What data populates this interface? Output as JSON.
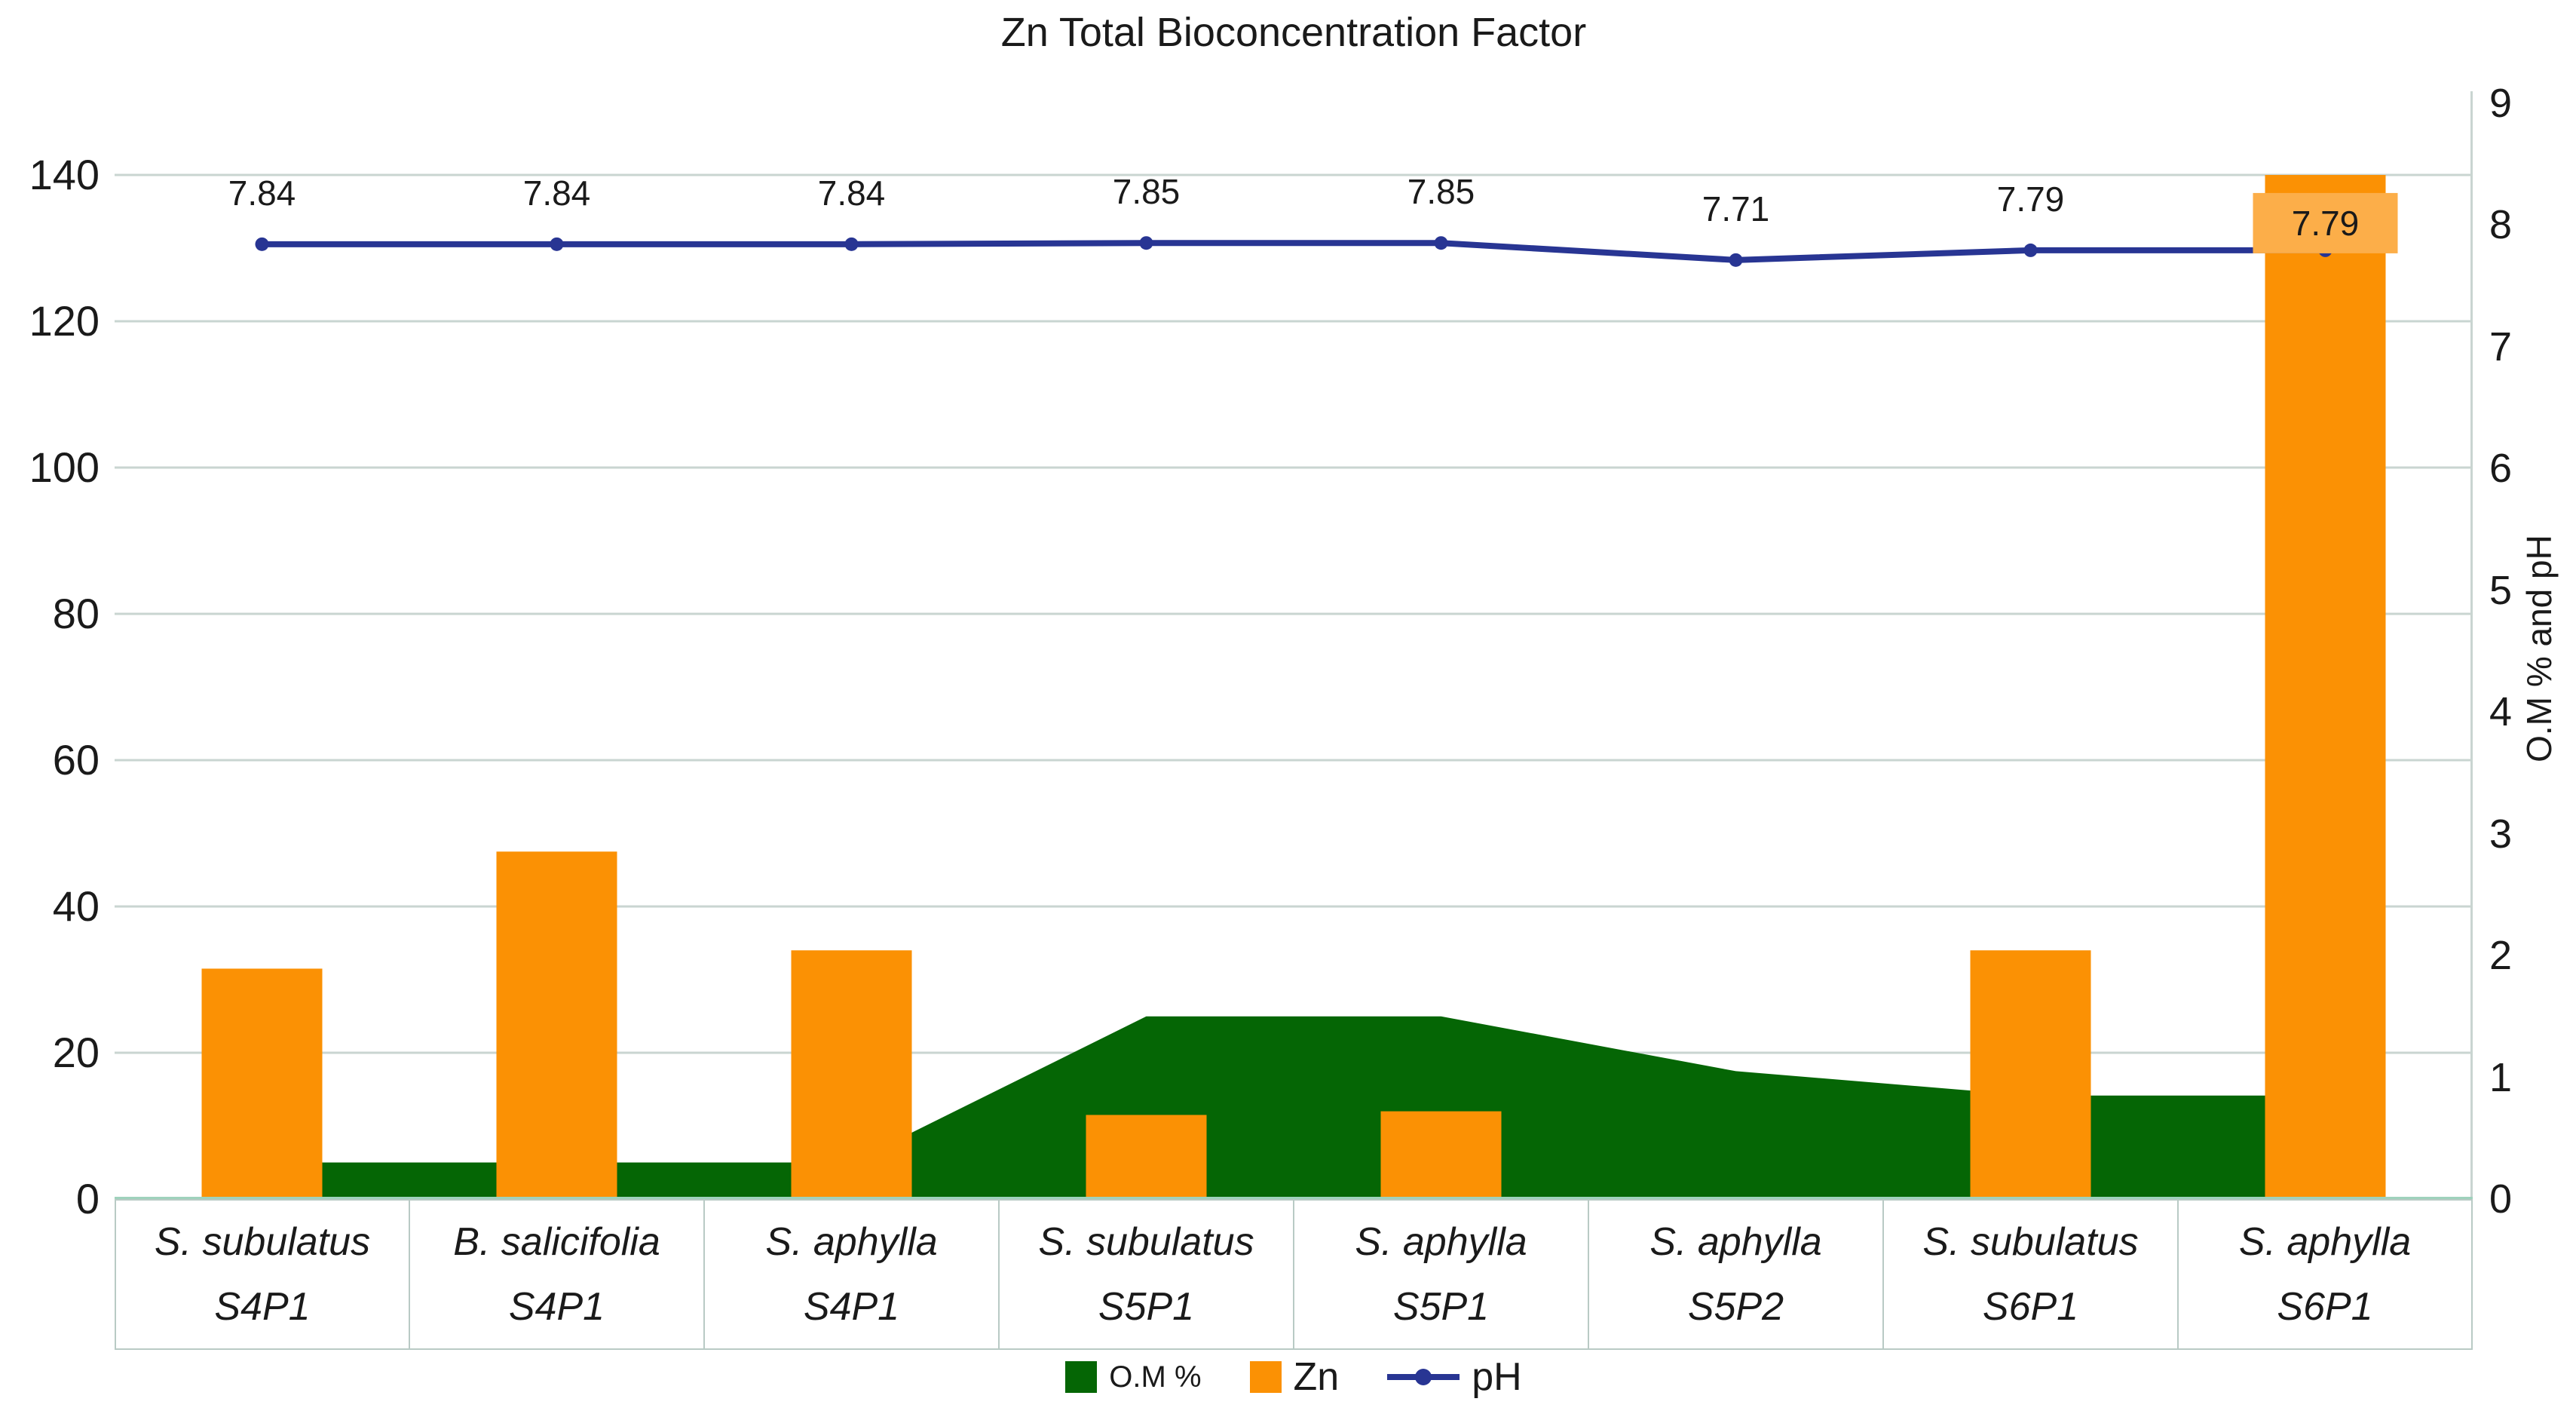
{
  "title": "Zn Total Bioconcentration Factor",
  "left_axis": {
    "ticks": [
      0,
      20,
      40,
      60,
      80,
      100,
      120,
      140
    ],
    "min": 0,
    "max": 140
  },
  "right_axis": {
    "ticks": [
      0,
      1,
      2,
      3,
      4,
      5,
      6,
      7,
      8,
      9
    ],
    "min": 0,
    "max": 9,
    "title": "O.M % and pH"
  },
  "legend": [
    {
      "label": "O.M %",
      "type": "area",
      "color": "#056605",
      "size": "small"
    },
    {
      "label": "Zn",
      "type": "bar",
      "color": "#fb9104",
      "size": "large"
    },
    {
      "label": "pH",
      "type": "line",
      "color": "#283593",
      "size": "large"
    }
  ],
  "colors": {
    "bar": "#fb9104",
    "area": "#056605",
    "line": "#283593",
    "gridline": "#c9d5d1",
    "baseline": "#9fd2bc",
    "cell_border": "#b9cac5",
    "last_label_box": "#fcae49",
    "text": "#1a1a1a"
  },
  "chart_data": {
    "type": "combo",
    "categories": [
      {
        "species": "S. subulatus",
        "code": "S4P1"
      },
      {
        "species": "B. salicifolia",
        "code": "S4P1"
      },
      {
        "species": "S. aphylla",
        "code": "S4P1"
      },
      {
        "species": "S. subulatus",
        "code": "S5P1"
      },
      {
        "species": "S. aphylla",
        "code": "S5P1"
      },
      {
        "species": "S. aphylla",
        "code": "S5P2"
      },
      {
        "species": "S. subulatus",
        "code": "S6P1"
      },
      {
        "species": "S. aphylla",
        "code": "S6P1"
      }
    ],
    "series": [
      {
        "name": "O.M %",
        "type": "area",
        "axis": "right",
        "values": [
          0.3,
          0.3,
          0.3,
          1.5,
          1.5,
          1.05,
          0.85,
          0.85
        ]
      },
      {
        "name": "Zn",
        "type": "bar",
        "axis": "left",
        "values": [
          31.5,
          47.5,
          34,
          11.5,
          12,
          0,
          34,
          140
        ]
      },
      {
        "name": "pH",
        "type": "line",
        "axis": "right",
        "values": [
          7.84,
          7.84,
          7.84,
          7.85,
          7.85,
          7.71,
          7.79,
          7.79
        ],
        "labels": [
          "7.84",
          "7.84",
          "7.84",
          "7.85",
          "7.85",
          "7.71",
          "7.79",
          "7.79"
        ],
        "last_label_boxed": true
      }
    ],
    "left_ylim": [
      0,
      140
    ],
    "right_ylim": [
      0,
      9
    ],
    "grid": true,
    "legend_position": "bottom"
  }
}
